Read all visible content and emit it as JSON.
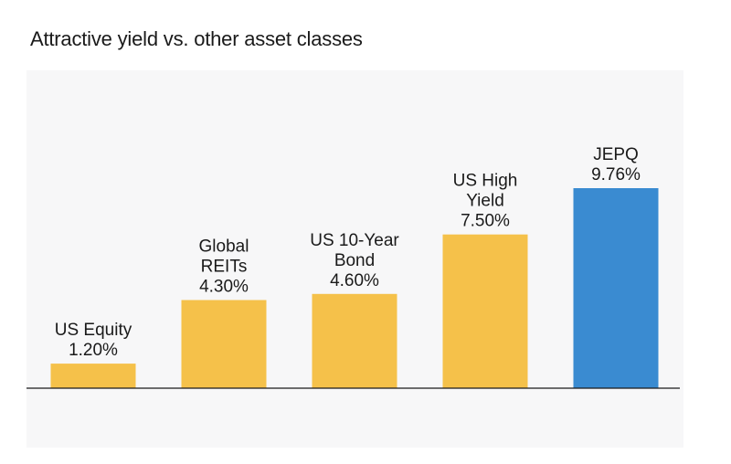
{
  "chart_data": {
    "type": "bar",
    "title": "Attractive yield vs. other asset classes",
    "categories": [
      "US Equity",
      "Global REITs",
      "US 10-Year Bond",
      "US High Yield",
      "JEPQ"
    ],
    "category_label_lines": [
      [
        "US Equity"
      ],
      [
        "Global",
        "REITs"
      ],
      [
        "US 10-Year",
        "Bond"
      ],
      [
        "US High",
        "Yield"
      ],
      [
        "JEPQ"
      ]
    ],
    "values": [
      1.2,
      4.3,
      4.6,
      7.5,
      9.76
    ],
    "value_labels": [
      "1.20%",
      "4.30%",
      "4.60%",
      "7.50%",
      "9.76%"
    ],
    "bar_colors": [
      "#f5c14a",
      "#f5c14a",
      "#f5c14a",
      "#f5c14a",
      "#3a8bd1"
    ],
    "ylim": [
      0,
      10
    ],
    "xlabel": "",
    "ylabel": "",
    "grid": false,
    "legend": "none",
    "baseline_color": "#1a1a1a",
    "background_color": "#f7f7f8"
  }
}
